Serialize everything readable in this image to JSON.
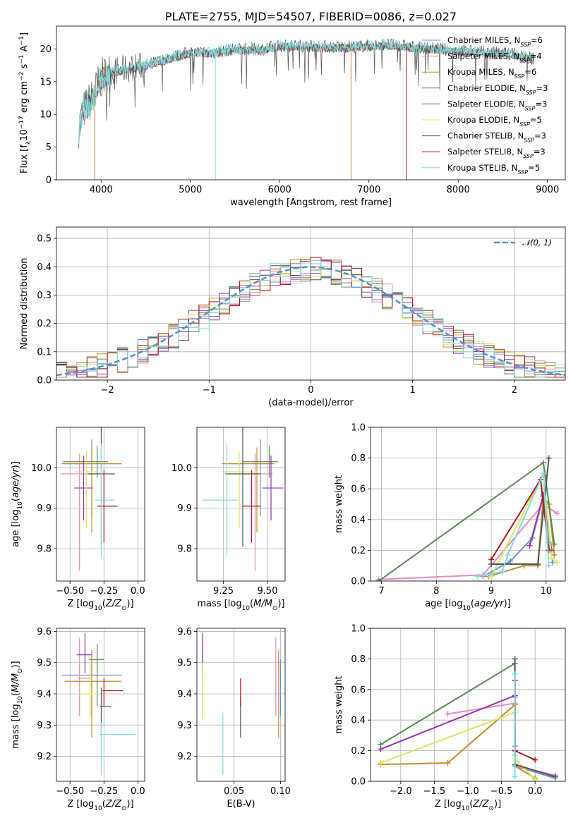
{
  "figure": {
    "background": "#ffffff"
  },
  "models": [
    {
      "name": "Chabrier MILES",
      "nssp": "6",
      "color": "#6b8fd6"
    },
    {
      "name": "Salpeter MILES",
      "nssp": "4",
      "color": "#e88ac4"
    },
    {
      "name": "Kroupa MILES",
      "nssp": "6",
      "color": "#c98a2e"
    },
    {
      "name": "Chabrier ELODIE",
      "nssp": "3",
      "color": "#5a8a5a"
    },
    {
      "name": "Salpeter ELODIE",
      "nssp": "3",
      "color": "#9b30b5"
    },
    {
      "name": "Kroupa ELODIE",
      "nssp": "5",
      "color": "#d6ea5a"
    },
    {
      "name": "Chabrier STELIB",
      "nssp": "3",
      "color": "#555555"
    },
    {
      "name": "Salpeter STELIB",
      "nssp": "3",
      "color": "#b01818"
    },
    {
      "name": "Kroupa STELIB",
      "nssp": "5",
      "color": "#7fdde0"
    }
  ],
  "chart_data": [
    {
      "id": "spectrum",
      "type": "line",
      "title": "PLATE=2755, MJD=54507, FIBERID=0086, z=0.027",
      "xlabel": "wavelength [Angstrom, rest frame]",
      "ylabel": "Flux [f_λ 10^-17 erg cm^-2 s^-1 A^-1]",
      "xlim": [
        3500,
        9200
      ],
      "ylim": [
        0,
        23.5
      ],
      "xticks": [
        4000,
        5000,
        6000,
        7000,
        8000,
        9000
      ],
      "yticks": [
        0,
        5,
        10,
        15,
        20
      ],
      "grid": false,
      "legend": "right",
      "continuum": {
        "x": [
          3750,
          3800,
          3900,
          4000,
          4100,
          4300,
          4500,
          4800,
          5000,
          5300,
          5500,
          5800,
          6000,
          6300,
          6600,
          7000,
          7200,
          7500,
          7800,
          8000,
          8300,
          8600,
          8850
        ],
        "y": [
          8.0,
          10.5,
          12.5,
          15.5,
          16.5,
          17.0,
          17.5,
          18.8,
          19.5,
          19.5,
          20.0,
          20.0,
          20.5,
          20.5,
          20.3,
          20.5,
          20.7,
          20.3,
          20.0,
          19.8,
          19.5,
          19.3,
          18.5
        ]
      },
      "dips": [
        {
          "x": 3930,
          "y": 0.0,
          "model": "Kroupa MILES"
        },
        {
          "x": 5280,
          "y": 0.0,
          "model": "Kroupa STELIB"
        },
        {
          "x": 6800,
          "y": 0.0,
          "model": "Kroupa MILES"
        },
        {
          "x": 7420,
          "y": 0.0,
          "model": "Salpeter STELIB"
        }
      ]
    },
    {
      "id": "residuals",
      "type": "step",
      "xlabel": "(data-model)/error",
      "ylabel": "Normed distribution",
      "xlim": [
        -2.5,
        2.5
      ],
      "ylim": [
        0,
        0.54
      ],
      "xticks": [
        -2,
        -1,
        0,
        1,
        2
      ],
      "yticks": [
        0.0,
        0.1,
        0.2,
        0.3,
        0.4,
        0.5
      ],
      "grid": true,
      "legend": "top-right",
      "normal_label": "𝒩(0, 1)",
      "normal_color": "#5b8fd9"
    },
    {
      "id": "age-vs-Z",
      "type": "errorbar",
      "xlabel": "Z [log10(Z/Z⊙)]",
      "ylabel": "age [log10(age/yr)]",
      "xlim": [
        -0.6,
        0.05
      ],
      "ylim": [
        9.72,
        10.1
      ],
      "xticks": [
        -0.5,
        -0.25,
        0.0
      ],
      "yticks": [
        9.8,
        9.9,
        10.0
      ],
      "grid": true,
      "points": [
        {
          "x": -0.34,
          "xerr": [
            0.22,
            0.22
          ],
          "y": 10.01,
          "yerr": [
            0.13,
            0.06
          ],
          "model": "Chabrier MILES"
        },
        {
          "x": -0.43,
          "xerr": [
            0.14,
            0.18
          ],
          "y": 9.985,
          "yerr": [
            0.24,
            0.05
          ],
          "model": "Salpeter MILES"
        },
        {
          "x": -0.34,
          "xerr": [
            0.2,
            0.22
          ],
          "y": 10.01,
          "yerr": [
            0.17,
            0.04
          ],
          "model": "Kroupa MILES"
        },
        {
          "x": -0.3,
          "xerr": [
            0.25,
            0.08
          ],
          "y": 10.015,
          "yerr": [
            0.04,
            0.04
          ],
          "model": "Chabrier ELODIE"
        },
        {
          "x": -0.4,
          "xerr": [
            0.07,
            0.07
          ],
          "y": 9.95,
          "yerr": [
            0.08,
            0.08
          ],
          "model": "Salpeter ELODIE"
        },
        {
          "x": -0.38,
          "xerr": [
            0.08,
            0.08
          ],
          "y": 9.99,
          "yerr": [
            0.14,
            0.05
          ],
          "model": "Kroupa ELODIE"
        },
        {
          "x": -0.27,
          "xerr": [
            0.1,
            0.1
          ],
          "y": 9.985,
          "yerr": [
            0.18,
            0.13
          ],
          "model": "Chabrier STELIB"
        },
        {
          "x": -0.25,
          "xerr": [
            0.05,
            0.1
          ],
          "y": 9.905,
          "yerr": [
            0.09,
            0.09
          ],
          "model": "Salpeter STELIB"
        },
        {
          "x": -0.27,
          "xerr": [
            0.05,
            0.1
          ],
          "y": 9.92,
          "yerr": [
            0.14,
            0.14
          ],
          "model": "Kroupa STELIB"
        }
      ]
    },
    {
      "id": "age-vs-mass",
      "type": "errorbar",
      "xlabel": "mass [log10(M/M⊙)]",
      "xlim": [
        9.1,
        9.6
      ],
      "ylim": [
        9.72,
        10.1
      ],
      "xticks": [
        9.25,
        9.5
      ],
      "yticks": [
        9.8,
        9.9,
        10.0
      ],
      "grid": true,
      "points": [
        {
          "x": 9.46,
          "xerr": [
            0.2,
            0.05
          ],
          "y": 10.01,
          "yerr": [
            0.13,
            0.06
          ],
          "model": "Chabrier MILES"
        },
        {
          "x": 9.43,
          "xerr": [
            0.16,
            0.1
          ],
          "y": 9.985,
          "yerr": [
            0.24,
            0.05
          ],
          "model": "Salpeter MILES"
        },
        {
          "x": 9.44,
          "xerr": [
            0.2,
            0.1
          ],
          "y": 10.01,
          "yerr": [
            0.17,
            0.04
          ],
          "model": "Kroupa MILES"
        },
        {
          "x": 9.51,
          "xerr": [
            0.15,
            0.05
          ],
          "y": 10.015,
          "yerr": [
            0.04,
            0.04
          ],
          "model": "Chabrier ELODIE"
        },
        {
          "x": 9.52,
          "xerr": [
            0.05,
            0.07
          ],
          "y": 9.95,
          "yerr": [
            0.08,
            0.08
          ],
          "model": "Salpeter ELODIE"
        },
        {
          "x": 9.34,
          "xerr": [
            0.1,
            0.1
          ],
          "y": 9.99,
          "yerr": [
            0.14,
            0.05
          ],
          "model": "Kroupa ELODIE"
        },
        {
          "x": 9.36,
          "xerr": [
            0.1,
            0.1
          ],
          "y": 9.985,
          "yerr": [
            0.18,
            0.13
          ],
          "model": "Chabrier STELIB"
        },
        {
          "x": 9.41,
          "xerr": [
            0.05,
            0.05
          ],
          "y": 9.905,
          "yerr": [
            0.09,
            0.09
          ],
          "model": "Salpeter STELIB"
        },
        {
          "x": 9.27,
          "xerr": [
            0.14,
            0.06
          ],
          "y": 9.92,
          "yerr": [
            0.14,
            0.14
          ],
          "model": "Kroupa STELIB"
        }
      ]
    },
    {
      "id": "weight-vs-age",
      "type": "line",
      "xlabel": "age [log10(age/yr)]",
      "ylabel": "mass weight",
      "xlim": [
        6.8,
        10.35
      ],
      "ylim": [
        0,
        1.0
      ],
      "xticks": [
        7,
        8,
        9,
        10
      ],
      "yticks": [
        0.0,
        0.2,
        0.4,
        0.6,
        0.8,
        1.0
      ],
      "grid": true,
      "series": [
        {
          "model": "Chabrier MILES",
          "x": [
            8.85,
            9.35,
            9.75,
            9.95,
            10.05,
            10.12
          ],
          "y": [
            0.03,
            0.13,
            0.28,
            0.55,
            0.25,
            0.12
          ]
        },
        {
          "model": "Salpeter MILES",
          "x": [
            6.95,
            8.85,
            9.95,
            10.2
          ],
          "y": [
            0.01,
            0.04,
            0.5,
            0.44
          ]
        },
        {
          "model": "Kroupa MILES",
          "x": [
            8.95,
            9.6,
            9.85,
            9.95,
            10.05,
            10.15
          ],
          "y": [
            0.03,
            0.1,
            0.1,
            0.55,
            0.5,
            0.17
          ]
        },
        {
          "model": "Chabrier ELODIE",
          "x": [
            6.95,
            9.95,
            10.15
          ],
          "y": [
            0.0,
            0.77,
            0.24
          ]
        },
        {
          "model": "Salpeter ELODIE",
          "x": [
            9.7,
            9.95,
            10.1
          ],
          "y": [
            0.23,
            0.56,
            0.2
          ]
        },
        {
          "model": "Kroupa ELODIE",
          "x": [
            9.0,
            9.95,
            10.1,
            10.2
          ],
          "y": [
            0.03,
            0.7,
            0.15,
            0.12
          ]
        },
        {
          "model": "Chabrier STELIB",
          "x": [
            9.0,
            9.85,
            10.05
          ],
          "y": [
            0.11,
            0.11,
            0.8
          ]
        },
        {
          "model": "Salpeter STELIB",
          "x": [
            9.0,
            9.9,
            10.05
          ],
          "y": [
            0.14,
            0.66,
            0.2
          ]
        },
        {
          "model": "Kroupa STELIB",
          "x": [
            8.75,
            9.2,
            9.3,
            9.95,
            10.05
          ],
          "y": [
            0.03,
            0.06,
            0.17,
            0.7,
            0.1
          ]
        }
      ]
    },
    {
      "id": "mass-vs-Z",
      "type": "errorbar",
      "xlabel": "Z [log10(Z/Z⊙)]",
      "ylabel": "mass [log10(M/M⊙)]",
      "xlim": [
        -0.6,
        0.05
      ],
      "ylim": [
        9.12,
        9.61
      ],
      "xticks": [
        -0.5,
        -0.25,
        0.0
      ],
      "yticks": [
        9.2,
        9.3,
        9.4,
        9.5,
        9.6
      ],
      "grid": true,
      "points": [
        {
          "x": -0.34,
          "xerr": [
            0.22,
            0.22
          ],
          "y": 9.46,
          "yerr": [
            0.13,
            0.05
          ],
          "model": "Chabrier MILES"
        },
        {
          "x": -0.43,
          "xerr": [
            0.01,
            0.08
          ],
          "y": 9.45,
          "yerr": [
            0.12,
            0.13
          ],
          "model": "Salpeter MILES"
        },
        {
          "x": -0.34,
          "xerr": [
            0.2,
            0.22
          ],
          "y": 9.44,
          "yerr": [
            0.18,
            0.1
          ],
          "model": "Kroupa MILES"
        },
        {
          "x": -0.3,
          "xerr": [
            0.06,
            0.05
          ],
          "y": 9.51,
          "yerr": [
            0.15,
            0.05
          ],
          "model": "Chabrier ELODIE"
        },
        {
          "x": -0.39,
          "xerr": [
            0.06,
            0.05
          ],
          "y": 9.525,
          "yerr": [
            0.06,
            0.07
          ],
          "model": "Salpeter ELODIE"
        },
        {
          "x": -0.35,
          "xerr": [
            0.06,
            0.06
          ],
          "y": 9.4,
          "yerr": [
            0.08,
            0.1
          ],
          "model": "Kroupa ELODIE"
        },
        {
          "x": -0.27,
          "xerr": [
            0.01,
            0.07
          ],
          "y": 9.36,
          "yerr": [
            0.1,
            0.06
          ],
          "model": "Chabrier STELIB"
        },
        {
          "x": -0.25,
          "xerr": [
            0.01,
            0.14
          ],
          "y": 9.41,
          "yerr": [
            0.05,
            0.04
          ],
          "model": "Salpeter STELIB"
        },
        {
          "x": -0.27,
          "xerr": [
            0.01,
            0.25
          ],
          "y": 9.27,
          "yerr": [
            0.13,
            0.04
          ],
          "model": "Kroupa STELIB"
        }
      ]
    },
    {
      "id": "mass-vs-EBV",
      "type": "errorbar",
      "xlabel": "E(B-V)",
      "xlim": [
        0.01,
        0.105
      ],
      "ylim": [
        9.12,
        9.61
      ],
      "xticks": [
        0.05,
        0.1
      ],
      "yticks": [
        9.2,
        9.3,
        9.4,
        9.5,
        9.6
      ],
      "grid": true,
      "points": [
        {
          "x": 0.1,
          "y": 9.46,
          "yerr": [
            0.13,
            0.05
          ],
          "model": "Chabrier MILES"
        },
        {
          "x": 0.095,
          "y": 9.45,
          "yerr": [
            0.12,
            0.13
          ],
          "model": "Salpeter MILES"
        },
        {
          "x": 0.098,
          "y": 9.44,
          "yerr": [
            0.18,
            0.1
          ],
          "model": "Kroupa MILES"
        },
        {
          "x": 0.016,
          "y": 9.51,
          "yerr": [
            0.05,
            0.05
          ],
          "model": "Chabrier ELODIE"
        },
        {
          "x": 0.016,
          "y": 9.525,
          "yerr": [
            0.06,
            0.07
          ],
          "model": "Salpeter ELODIE"
        },
        {
          "x": 0.016,
          "y": 9.41,
          "yerr": [
            0.09,
            0.09
          ],
          "model": "Kroupa ELODIE"
        },
        {
          "x": 0.057,
          "y": 9.3,
          "yerr": [
            0.04,
            0.09
          ],
          "model": "Chabrier STELIB"
        },
        {
          "x": 0.057,
          "y": 9.41,
          "yerr": [
            0.05,
            0.04
          ],
          "model": "Salpeter STELIB"
        },
        {
          "x": 0.038,
          "y": 9.24,
          "yerr": [
            0.1,
            0.1
          ],
          "model": "Kroupa STELIB"
        }
      ]
    },
    {
      "id": "weight-vs-Z",
      "type": "line",
      "xlabel": "Z [log10(Z/Z⊙)]",
      "ylabel": "mass weight",
      "xlim": [
        -2.45,
        0.45
      ],
      "ylim": [
        0,
        1.0
      ],
      "xticks": [
        -2.0,
        -1.5,
        -1.0,
        -0.5,
        0.0
      ],
      "yticks": [
        0.0,
        0.2,
        0.4,
        0.6,
        0.8,
        1.0
      ],
      "grid": true,
      "series": [
        {
          "model": "Chabrier MILES",
          "x": [
            -0.3,
            -0.3,
            -0.3,
            0.3
          ],
          "y": [
            0.23,
            0.55,
            0.1,
            0.02
          ]
        },
        {
          "model": "Salpeter MILES",
          "x": [
            -1.3,
            -0.3,
            -0.3,
            0.3
          ],
          "y": [
            0.44,
            0.51,
            0.1,
            0.04
          ]
        },
        {
          "model": "Kroupa MILES",
          "x": [
            -2.3,
            -1.3,
            -0.3,
            -0.3,
            0.0
          ],
          "y": [
            0.11,
            0.12,
            0.5,
            0.1,
            0.02
          ]
        },
        {
          "model": "Chabrier ELODIE",
          "x": [
            -2.3,
            -0.3,
            -0.3
          ],
          "y": [
            0.24,
            0.77,
            0.1
          ]
        },
        {
          "model": "Salpeter ELODIE",
          "x": [
            -2.3,
            -0.3,
            -0.3
          ],
          "y": [
            0.21,
            0.56,
            0.2
          ]
        },
        {
          "model": "Kroupa ELODIE",
          "x": [
            -2.3,
            -0.3,
            -0.3,
            0.0
          ],
          "y": [
            0.12,
            0.45,
            0.15,
            0.01
          ]
        },
        {
          "model": "Chabrier STELIB",
          "x": [
            -0.3,
            -0.3,
            0.3
          ],
          "y": [
            0.8,
            0.11,
            0.03
          ]
        },
        {
          "model": "Salpeter STELIB",
          "x": [
            -0.3,
            -0.3,
            0.0
          ],
          "y": [
            0.66,
            0.2,
            0.14
          ]
        },
        {
          "model": "Kroupa STELIB",
          "x": [
            -0.3,
            -0.3,
            -0.3
          ],
          "y": [
            0.7,
            0.03,
            0.17
          ]
        }
      ]
    }
  ]
}
